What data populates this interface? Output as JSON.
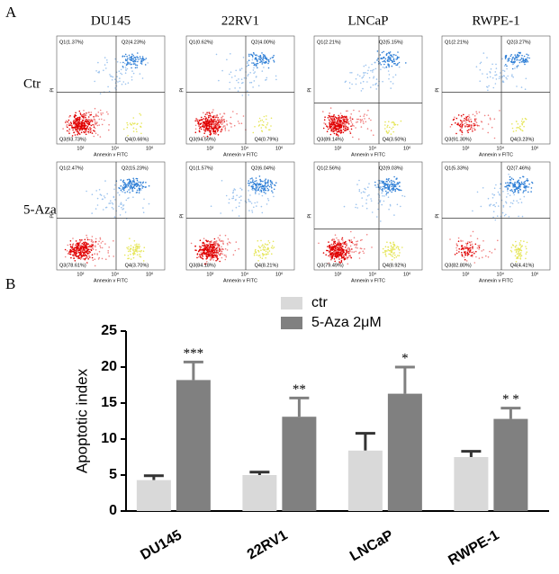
{
  "panel_a": {
    "label": "A",
    "columns": [
      "DU145",
      "22RV1",
      "LNCaP",
      "RWPE-1"
    ],
    "rows": [
      "Ctr",
      "5-Aza"
    ],
    "x_axis_label": "Annexin v FITC",
    "y_axis_label": "PI",
    "x_tick_labels": [
      "10²",
      "10⁴",
      "10⁶"
    ],
    "plots": [
      [
        [
          "Q1(1.37%)",
          "Q2(4.23%)",
          "Q3(93.73%)",
          "Q4(0.66%)"
        ],
        [
          "Q1(0.62%)",
          "Q2(4.00%)",
          "Q3(94.59%)",
          "Q4(0.79%)"
        ],
        [
          "Q1(2.21%)",
          "Q2(5.15%)",
          "Q3(89.14%)",
          "Q4(3.50%)"
        ],
        [
          "Q1(2.21%)",
          "Q2(3.27%)",
          "Q3(91.30%)",
          "Q4(3.23%)"
        ]
      ],
      [
        [
          "Q1(2.47%)",
          "Q2(15.23%)",
          "Q3(78.61%)",
          "Q4(3.70%)"
        ],
        [
          "Q1(1.57%)",
          "Q2(6.04%)",
          "Q3(84.18%)",
          "Q4(8.21%)"
        ],
        [
          "Q1(2.56%)",
          "Q2(9.03%)",
          "Q3(79.49%)",
          "Q4(8.92%)"
        ],
        [
          "Q1(5.33%)",
          "Q2(7.46%)",
          "Q3(82.80%)",
          "Q4(4.41%)"
        ]
      ]
    ]
  },
  "chart_data": {
    "type": "bar",
    "panel_label": "B",
    "y_label": "Apoptotic index",
    "categories": [
      "DU145",
      "22RV1",
      "LNCaP",
      "RWPE-1"
    ],
    "series": [
      {
        "name": "ctr",
        "color": "#d9d9d9",
        "values": [
          4.3,
          5.0,
          8.4,
          7.5
        ],
        "errors": [
          0.6,
          0.4,
          2.4,
          0.8
        ]
      },
      {
        "name": "5-Aza 2μM",
        "color": "#808080",
        "values": [
          18.2,
          13.1,
          16.3,
          12.8
        ],
        "errors": [
          2.5,
          2.6,
          3.7,
          1.5
        ],
        "annotations": [
          "***",
          "**",
          "*",
          "* *"
        ]
      }
    ],
    "ylim": [
      0,
      25
    ],
    "yticks": [
      0,
      5,
      10,
      15,
      20,
      25
    ],
    "legend": "top"
  }
}
